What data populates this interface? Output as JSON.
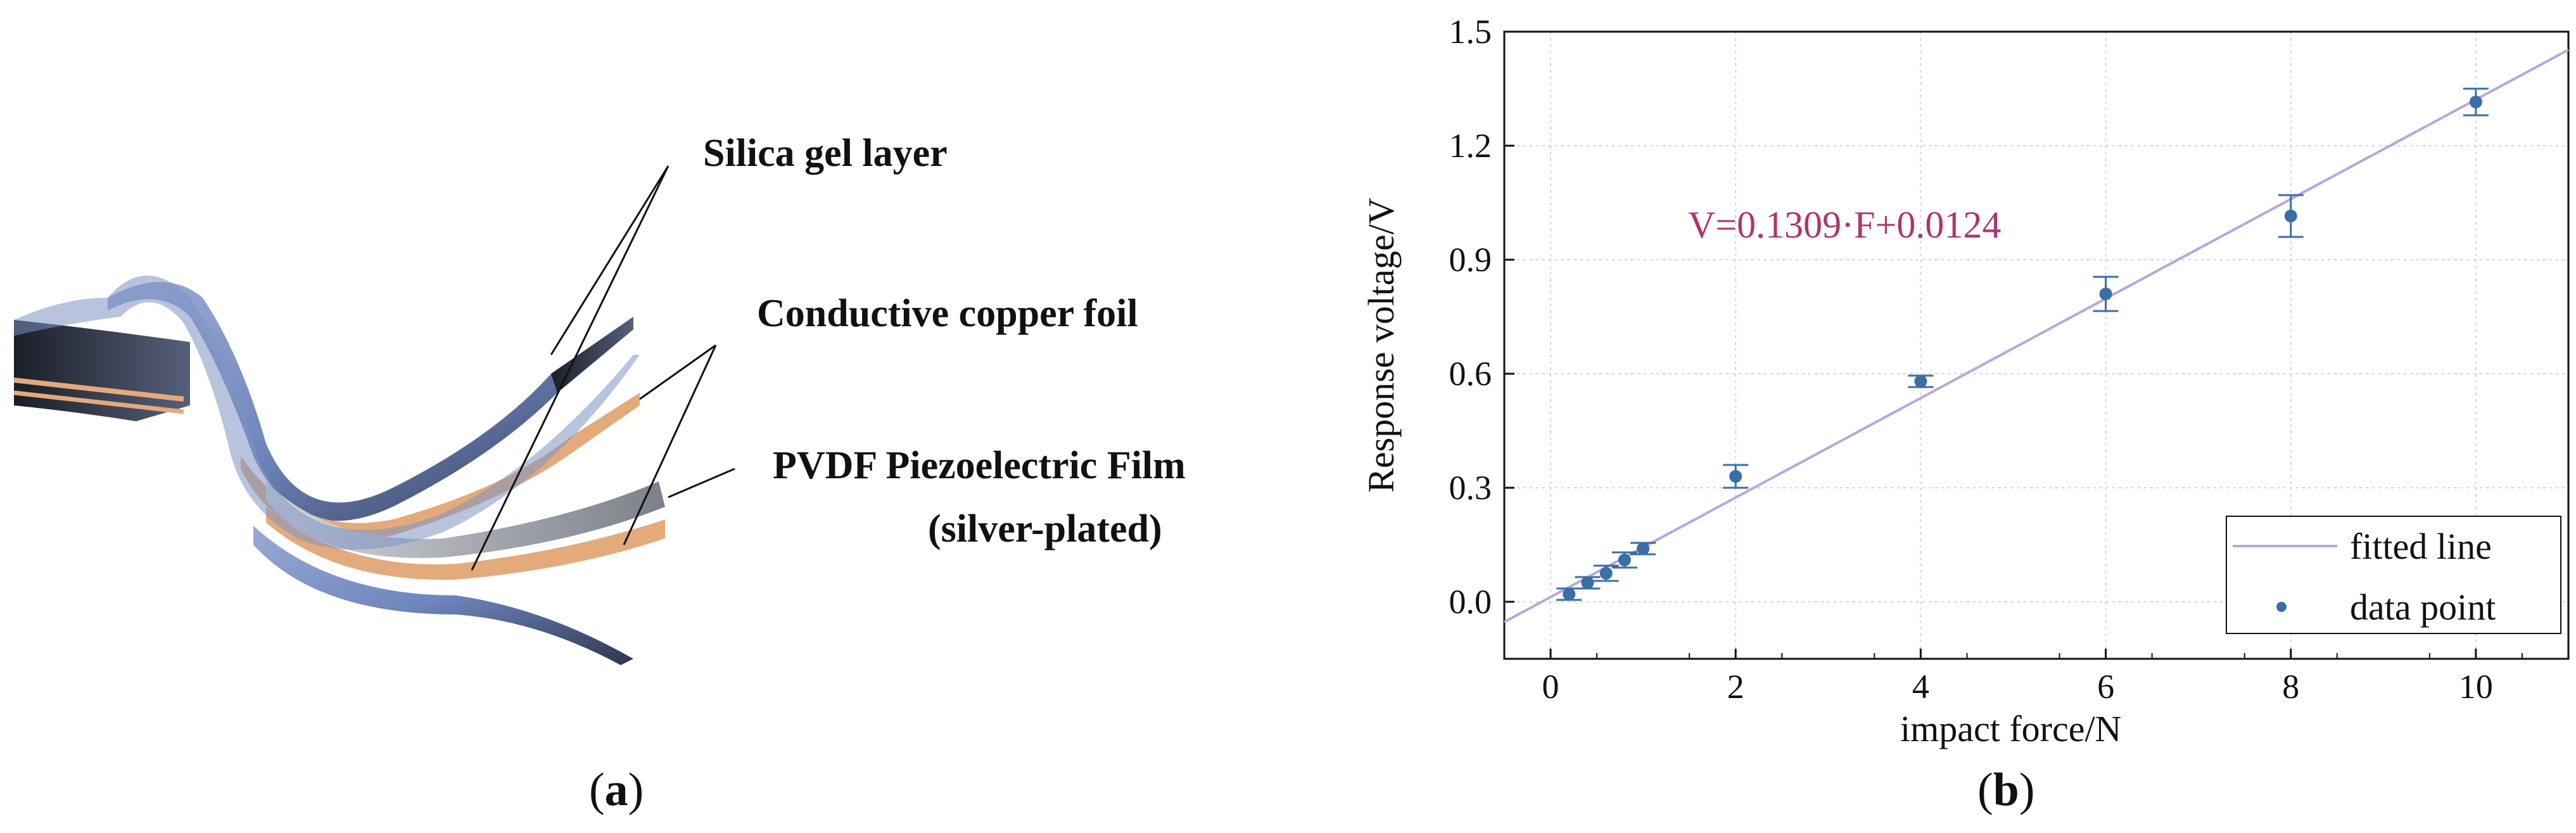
{
  "panel_a": {
    "caption_open": "(",
    "caption_letter": "a",
    "caption_close": ")",
    "labels": {
      "silica": "Silica gel layer",
      "copper": "Conductive copper foil",
      "pvdf_line1": "PVDF Piezoelectric Film",
      "pvdf_line2": "(silver-plated)"
    },
    "colors": {
      "blue": "#7e93c2",
      "copper": "#e3aa7c",
      "gray": "#a9adb4",
      "dark": "#2a2f3a"
    }
  },
  "panel_b": {
    "caption_open": "(",
    "caption_letter": "b",
    "caption_close": ")",
    "equation": "V=0.1309·F+0.0124"
  },
  "chart_data": {
    "type": "scatter",
    "xlabel": "impact force/N",
    "ylabel": "Response voltage/V",
    "xlim": [
      -0.5,
      11
    ],
    "ylim": [
      -0.15,
      1.5
    ],
    "xticks": [
      0,
      2,
      4,
      6,
      8,
      10
    ],
    "yticks": [
      0.0,
      0.3,
      0.6,
      0.9,
      1.2,
      1.5
    ],
    "ytick_labels": [
      "0.0",
      "0.3",
      "0.6",
      "0.9",
      "1.2",
      "1.5"
    ],
    "grid": true,
    "legend_position": "bottom-right",
    "series": [
      {
        "name": "data point",
        "color": "#3a6ea5",
        "x": [
          0.2,
          0.4,
          0.6,
          0.8,
          1.0,
          2,
          4,
          6,
          8,
          10
        ],
        "y": [
          0.02,
          0.05,
          0.075,
          0.11,
          0.14,
          0.33,
          0.58,
          0.81,
          1.015,
          1.315
        ],
        "error": [
          0.015,
          0.015,
          0.02,
          0.02,
          0.015,
          0.03,
          0.015,
          0.045,
          0.055,
          0.035
        ]
      },
      {
        "name": "fitted line",
        "color": "#b9a6dc",
        "slope": 0.1309,
        "intercept": 0.0124
      }
    ]
  }
}
